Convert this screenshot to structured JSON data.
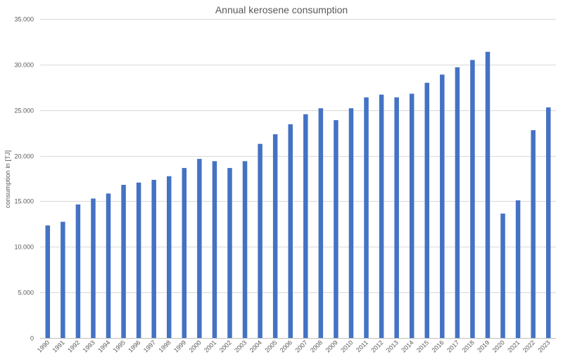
{
  "chart_data": {
    "type": "bar",
    "title": "Annual kerosene consumption",
    "xlabel": "",
    "ylabel": "consumption in [TJ]",
    "ylim": [
      0,
      35000
    ],
    "yticks": [
      0,
      5000,
      10000,
      15000,
      20000,
      25000,
      30000,
      35000
    ],
    "ytick_labels": [
      "0",
      "5.000",
      "10.000",
      "15.000",
      "20.000",
      "25.000",
      "30.000",
      "35.000"
    ],
    "grid": true,
    "legend": "none",
    "bar_color": "#4472C4",
    "categories": [
      "1990",
      "1991",
      "1992",
      "1993",
      "1994",
      "1995",
      "1996",
      "1997",
      "1998",
      "1999",
      "2000",
      "2001",
      "2002",
      "2003",
      "2004",
      "2005",
      "2006",
      "2007",
      "2008",
      "2009",
      "2010",
      "2011",
      "2012",
      "2013",
      "2014",
      "2015",
      "2016",
      "2017",
      "2018",
      "2019",
      "2020",
      "2021",
      "2022",
      "2023"
    ],
    "values": [
      12350,
      12750,
      14650,
      15300,
      15850,
      16800,
      17050,
      17350,
      17750,
      18650,
      19650,
      19400,
      18650,
      19400,
      21300,
      22350,
      23450,
      24550,
      25200,
      23900,
      25200,
      26400,
      26700,
      26400,
      26800,
      28000,
      28900,
      29700,
      30500,
      31400,
      13650,
      15100,
      22800,
      25300
    ]
  }
}
